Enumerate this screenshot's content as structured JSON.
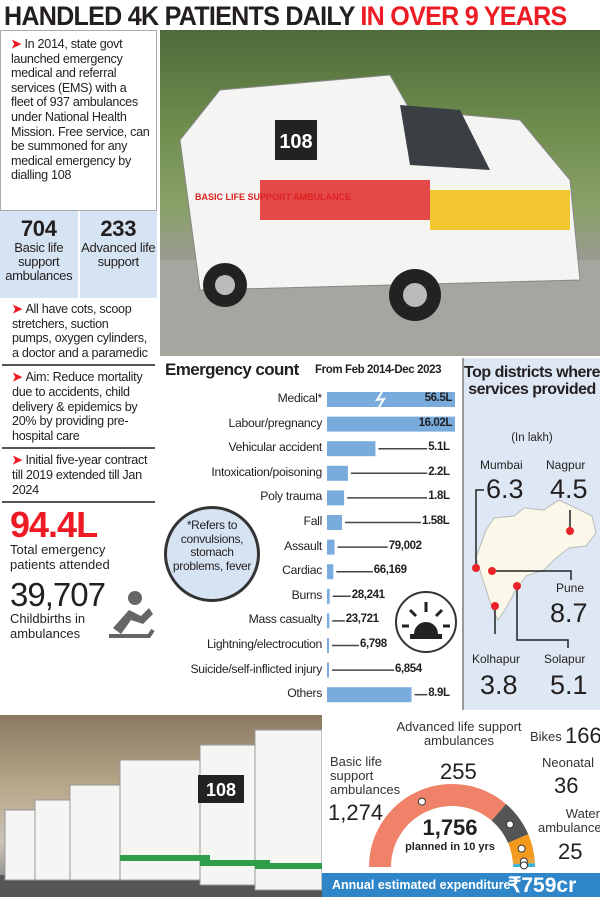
{
  "headline": {
    "part1": "HANDLED 4K PATIENTS DAILY",
    "part2": "IN OVER 9 YEARS"
  },
  "left": {
    "intro": "In 2014, state govt launched emergency medical and referral services (EMS) with a fleet of 937 ambulances under National Health Mission. Free service, can be summoned for any medical emergency by dialling 108",
    "stats": [
      {
        "value": "704",
        "label": "Basic life support ambulances"
      },
      {
        "value": "233",
        "label": "Advanced life support"
      }
    ],
    "bullets": [
      "All have cots, scoop stretchers, suction pumps, oxygen cylinders, a doctor and a paramedic",
      "Aim: Reduce mortality due to accidents, child delivery & epidemics by 20% by providing pre-hospital care",
      "Initial five-year contract till 2019 extended till Jan 2024"
    ],
    "total": {
      "value": "94.4L",
      "label": "Total emergency patients attended"
    },
    "births": {
      "value": "39,707",
      "label": "Childbirths in ambulances",
      "icon": "childbirth-icon"
    }
  },
  "photo_top": {
    "lettering": {
      "number": "108",
      "side": "BASIC LIFE SUPPORT AMBULANCE"
    }
  },
  "photo_bottom": {
    "lettering": {
      "number": "108"
    }
  },
  "colors": {
    "accent_red": "#ed1c24",
    "bar": "#79acdd",
    "panel": "#d6e3f3",
    "footer": "#2e86c8",
    "basic": "#f0826a",
    "advanced": "#555555",
    "bikes": "#f39a1e",
    "neonatal": "#e8a33a",
    "water": "#3bb3d8"
  },
  "chart_data": {
    "type": "bar",
    "orientation": "horizontal",
    "title": "Emergency count",
    "subtitle": "From Feb 2014-Dec 2023",
    "categories": [
      "Medical*",
      "Labour/pregnancy",
      "Vehicular accident",
      "Intoxication/poisoning",
      "Poly trauma",
      "Fall",
      "Assault",
      "Cardiac",
      "Burns",
      "Mass casualty",
      "Lightning/electrocution",
      "Suicide/self-inflicted injury",
      "Others"
    ],
    "values": [
      5650000,
      1602000,
      510000,
      220000,
      180000,
      158000,
      79002,
      66169,
      28241,
      23721,
      6798,
      6854,
      890000
    ],
    "labels": [
      "56.5L",
      "16.02L",
      "5.1L",
      "2.2L",
      "1.8L",
      "1.58L",
      "79,002",
      "66,169",
      "28,241",
      "23,721",
      "6,798",
      "6,854",
      "8.9L"
    ],
    "broken_axis_bars": [
      "Medical*"
    ],
    "footnote": "*Refers to convulsions, stomach problems, fever",
    "icon": "siren-icon"
  },
  "districts": {
    "title": "Top districts where services provided",
    "unit": "(In lakh)",
    "items": [
      {
        "name": "Mumbai",
        "value": "6.3"
      },
      {
        "name": "Nagpur",
        "value": "4.5"
      },
      {
        "name": "Pune",
        "value": "8.7"
      },
      {
        "name": "Kolhapur",
        "value": "3.8"
      },
      {
        "name": "Solapur",
        "value": "5.1"
      }
    ]
  },
  "fleet": {
    "total": "1,756",
    "total_label": "planned in 10 yrs",
    "segments": [
      {
        "name": "Basic life support ambulances",
        "value": 1274,
        "label": "1,274"
      },
      {
        "name": "Advanced life support ambulances",
        "value": 255,
        "label": "255"
      },
      {
        "name": "Bikes",
        "value": 166,
        "label": "166"
      },
      {
        "name": "Neonatal",
        "value": 36,
        "label": "36"
      },
      {
        "name": "Water ambulance",
        "value": 25,
        "label": "25"
      }
    ],
    "footer_label": "Annual estimated expenditure",
    "footer_value": "₹759cr"
  }
}
